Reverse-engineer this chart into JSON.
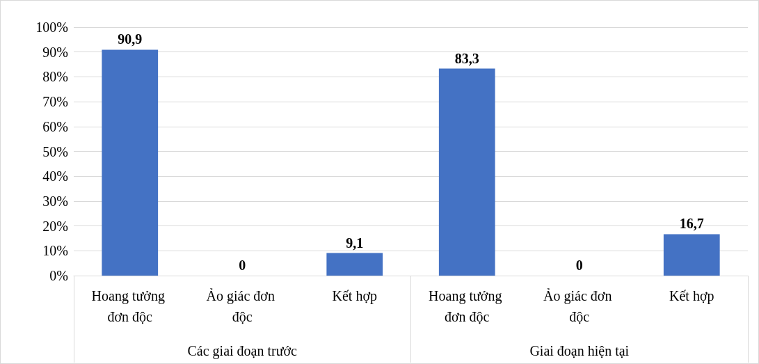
{
  "chart_data": {
    "type": "bar",
    "categories": [
      "Hoang tưởng đơn độc",
      "Ảo giác đơn độc",
      "Kết hợp",
      "Hoang tưởng đơn độc",
      "Ảo giác đơn độc",
      "Kết hợp"
    ],
    "values": [
      90.9,
      0,
      9.1,
      83.3,
      0,
      16.7
    ],
    "value_labels": [
      "90,9",
      "0",
      "9,1",
      "83,3",
      "0",
      "16,7"
    ],
    "color": "#4472c4",
    "ylim": [
      0,
      100
    ],
    "yticks": [
      {
        "value": 0,
        "label": "0%"
      },
      {
        "value": 10,
        "label": "10%"
      },
      {
        "value": 20,
        "label": "20%"
      },
      {
        "value": 30,
        "label": "30%"
      },
      {
        "value": 40,
        "label": "40%"
      },
      {
        "value": 50,
        "label": "50%"
      },
      {
        "value": 60,
        "label": "60%"
      },
      {
        "value": 70,
        "label": "70%"
      },
      {
        "value": 80,
        "label": "80%"
      },
      {
        "value": 90,
        "label": "90%"
      },
      {
        "value": 100,
        "label": "100%"
      }
    ],
    "annotations": [
      "Các giai đoạn trước",
      "Giai đoạn hiện tại"
    ],
    "grid": "y"
  }
}
